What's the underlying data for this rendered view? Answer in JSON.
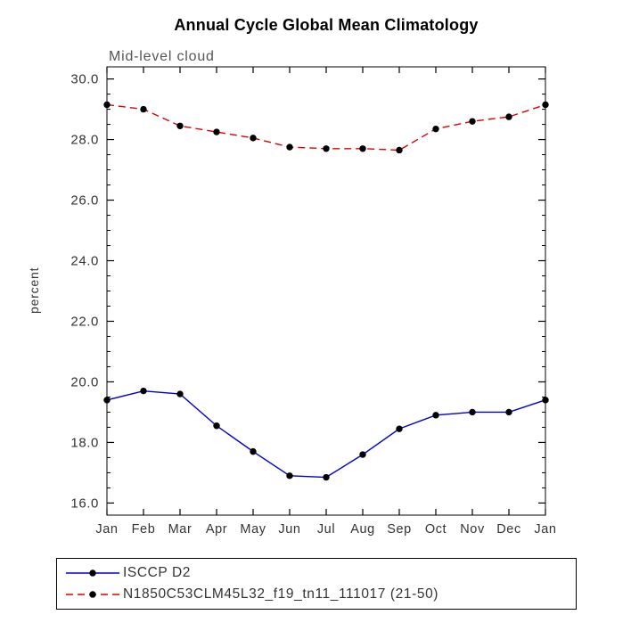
{
  "chart_data": {
    "type": "line",
    "title": "Annual Cycle Global Mean Climatology",
    "subtitle": "Mid-level cloud",
    "ylabel": "percent",
    "categories": [
      "Jan",
      "Feb",
      "Mar",
      "Apr",
      "May",
      "Jun",
      "Jul",
      "Aug",
      "Sep",
      "Oct",
      "Nov",
      "Dec",
      "Jan"
    ],
    "series": [
      {
        "name": "ISCCP D2",
        "color": "#0000cc",
        "style": "solid",
        "values": [
          19.4,
          19.7,
          19.6,
          18.55,
          17.7,
          16.9,
          16.85,
          17.6,
          18.45,
          18.9,
          19.0,
          19.0,
          19.4
        ]
      },
      {
        "name": "N1850C53CLM45L32_f19_tn11_111017 (21-50)",
        "color": "#dd0000",
        "style": "dashed",
        "values": [
          29.15,
          29.0,
          28.45,
          28.25,
          28.05,
          27.75,
          27.7,
          27.7,
          27.65,
          28.35,
          28.6,
          28.75,
          29.15
        ]
      }
    ],
    "marker_color": "#000000",
    "ylim": [
      15.6,
      30.4
    ],
    "yticks": [
      16.0,
      18.0,
      20.0,
      22.0,
      24.0,
      26.0,
      28.0,
      30.0
    ],
    "minor_tick_step": 0.5,
    "grid": "off",
    "legend_position": "bottom",
    "axis_color": "#000000",
    "tick_label_color": "#333333"
  }
}
